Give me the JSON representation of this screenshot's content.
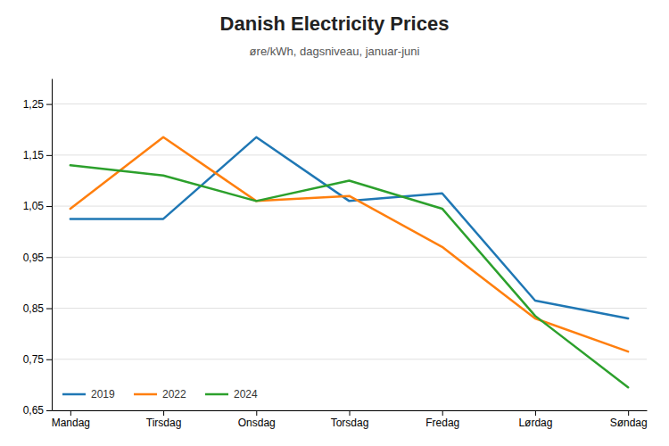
{
  "chart_data": {
    "type": "line",
    "title": "Danish Electricity Prices",
    "subtitle": "øre/kWh, dagsniveau, januar-juni",
    "categories": [
      "Mandag",
      "Tirsdag",
      "Onsdag",
      "Torsdag",
      "Fredag",
      "Lørdag",
      "Søndag"
    ],
    "series": [
      {
        "name": "2019",
        "values": [
          1.025,
          1.025,
          1.185,
          1.06,
          1.075,
          0.865,
          0.83
        ]
      },
      {
        "name": "2022",
        "values": [
          1.045,
          1.185,
          1.06,
          1.07,
          0.97,
          0.83,
          0.765
        ]
      },
      {
        "name": "2024",
        "values": [
          1.13,
          1.11,
          1.06,
          1.1,
          1.045,
          0.835,
          0.695
        ]
      }
    ],
    "ylim": [
      0.65,
      1.3
    ],
    "yticks": [
      {
        "value": 0.65,
        "label": "0,65"
      },
      {
        "value": 0.75,
        "label": "0,75"
      },
      {
        "value": 0.85,
        "label": "0,85"
      },
      {
        "value": 0.95,
        "label": "0,95"
      },
      {
        "value": 1.05,
        "label": "1,05"
      },
      {
        "value": 1.15,
        "label": "1,15"
      },
      {
        "value": 1.25,
        "label": "1,25"
      }
    ],
    "grid": true,
    "legend": "lower left"
  }
}
